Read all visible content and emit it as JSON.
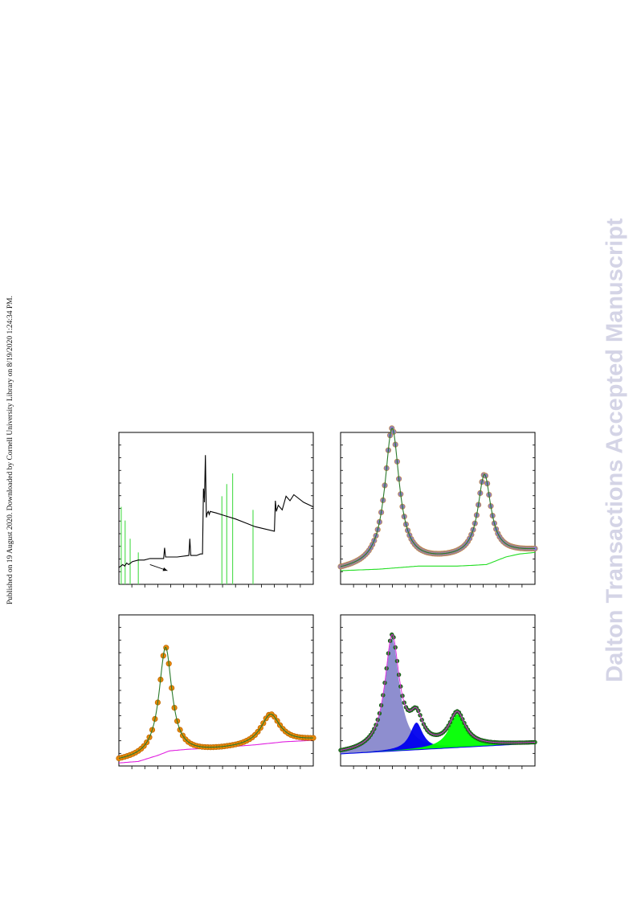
{
  "side_note": "Published on 19 August 2020. Downloaded by Cornell University Library on 8/19/2020 1:24:34 PM.",
  "watermark": "Dalton Transactions Accepted Manuscript",
  "colors": {
    "frame": "#000000",
    "spectrum": "#000000",
    "reference_lines": "#55dd55",
    "orange_points": "#e8880a",
    "purple_points": "#8c7fc4",
    "fit_line": "#2a7a2a",
    "magenta_background": "#e020e0",
    "green_background": "#22dd22",
    "purple_fill": "#8888cc",
    "blue_fill": "#0000ee",
    "green_fill": "#00ff00"
  },
  "chart_data": [
    {
      "type": "line",
      "panel": "top-left",
      "ylim": [
        0,
        1
      ],
      "series": [
        {
          "x": [
            0,
            0.01,
            0.02,
            0.03,
            0.04,
            0.05,
            0.07,
            0.1,
            0.13,
            0.16,
            0.2,
            0.23,
            0.235,
            0.24,
            0.27,
            0.3,
            0.36,
            0.365,
            0.37,
            0.4,
            0.42,
            0.43,
            0.435,
            0.44,
            0.44,
            0.445,
            0.45,
            0.455,
            0.46,
            0.465,
            0.47,
            0.5,
            0.55,
            0.6,
            0.66,
            0.7,
            0.8,
            0.805,
            0.81,
            0.82,
            0.84,
            0.86,
            0.88,
            0.9,
            0.95,
            1.0
          ],
          "y": [
            0.11,
            0.12,
            0.13,
            0.12,
            0.14,
            0.13,
            0.15,
            0.16,
            0.16,
            0.17,
            0.17,
            0.17,
            0.24,
            0.18,
            0.18,
            0.18,
            0.19,
            0.3,
            0.19,
            0.19,
            0.2,
            0.2,
            0.63,
            0.56,
            0.54,
            0.85,
            0.44,
            0.47,
            0.48,
            0.46,
            0.48,
            0.47,
            0.45,
            0.43,
            0.4,
            0.38,
            0.35,
            0.55,
            0.48,
            0.52,
            0.49,
            0.58,
            0.55,
            0.59,
            0.54,
            0.51
          ]
        }
      ],
      "reference_lines": [
        {
          "x": 0.012,
          "h": 0.51
        },
        {
          "x": 0.032,
          "h": 0.42
        },
        {
          "x": 0.058,
          "h": 0.3
        },
        {
          "x": 0.1,
          "h": 0.21
        },
        {
          "x": 0.53,
          "h": 0.58
        },
        {
          "x": 0.555,
          "h": 0.66
        },
        {
          "x": 0.585,
          "h": 0.73
        },
        {
          "x": 0.69,
          "h": 0.49
        }
      ],
      "annotations": [
        {
          "type": "arrow",
          "from": [
            0.16,
            0.13
          ],
          "to": [
            0.25,
            0.09
          ]
        }
      ]
    },
    {
      "type": "line",
      "panel": "top-right",
      "ylim": [
        0,
        1
      ],
      "series": [
        {
          "name": "",
          "kind": "background",
          "x": [
            0,
            0.2,
            0.4,
            0.6,
            0.75,
            0.85,
            0.92,
            1.0
          ],
          "y": [
            0.09,
            0.1,
            0.12,
            0.12,
            0.13,
            0.18,
            0.2,
            0.21
          ]
        },
        {
          "name": "",
          "kind": "data",
          "peaks": [
            {
              "center": 0.265,
              "height": 0.9,
              "width": 0.045
            },
            {
              "center": 0.74,
              "height": 0.53,
              "width": 0.04
            }
          ],
          "baseline": [
            0.09,
            0.22
          ]
        }
      ]
    },
    {
      "type": "line",
      "panel": "bottom-left",
      "ylim": [
        0,
        1
      ],
      "series": [
        {
          "name": "",
          "kind": "background",
          "x": [
            0,
            0.1,
            0.2,
            0.26,
            0.35,
            0.5,
            0.7,
            0.85,
            1.0
          ],
          "y": [
            0.02,
            0.03,
            0.07,
            0.1,
            0.11,
            0.12,
            0.14,
            0.16,
            0.17
          ]
        },
        {
          "name": "",
          "kind": "data",
          "peaks": [
            {
              "center": 0.24,
              "height": 0.72,
              "width": 0.04
            },
            {
              "center": 0.78,
              "height": 0.2,
              "width": 0.06
            }
          ],
          "baseline": [
            0.03,
            0.17
          ]
        }
      ]
    },
    {
      "type": "area",
      "panel": "bottom-right",
      "ylim": [
        0,
        1
      ],
      "series": [
        {
          "name": "",
          "kind": "component",
          "fill": "purple",
          "center": 0.265,
          "height": 0.75,
          "width": 0.045
        },
        {
          "name": "",
          "kind": "component",
          "fill": "blue",
          "center": 0.39,
          "height": 0.18,
          "width": 0.04
        },
        {
          "name": "",
          "kind": "component",
          "fill": "green",
          "center": 0.6,
          "height": 0.22,
          "width": 0.05
        },
        {
          "name": "",
          "kind": "data",
          "peaks": [
            {
              "center": 0.265,
              "height": 0.75,
              "width": 0.045
            },
            {
              "center": 0.39,
              "height": 0.18,
              "width": 0.04
            },
            {
              "center": 0.6,
              "height": 0.22,
              "width": 0.05
            }
          ],
          "baseline": [
            0.08,
            0.15
          ]
        }
      ]
    }
  ]
}
